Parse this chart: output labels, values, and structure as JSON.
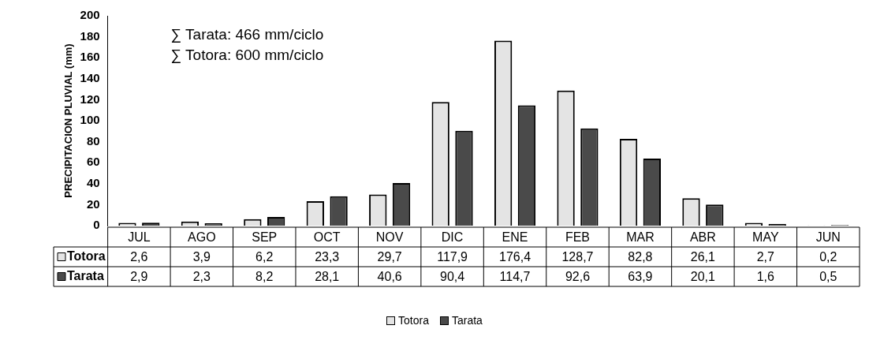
{
  "chart_data": {
    "type": "bar",
    "ylabel": "PRECIPITACION PLUVIAL (mm)",
    "annotations": [
      "∑ Tarata: 466 mm/ciclo",
      "∑ Totora: 600 mm/ciclo"
    ],
    "categories": [
      "JUL",
      "AGO",
      "SEP",
      "OCT",
      "NOV",
      "DIC",
      "ENE",
      "FEB",
      "MAR",
      "ABR",
      "MAY",
      "JUN"
    ],
    "series": [
      {
        "name": "Totora",
        "color": "#e4e4e4",
        "values": [
          2.6,
          3.9,
          6.2,
          23.3,
          29.7,
          117.9,
          176.4,
          128.7,
          82.8,
          26.1,
          2.7,
          0.2
        ],
        "value_labels": [
          "2,6",
          "3,9",
          "6,2",
          "23,3",
          "29,7",
          "117,9",
          "176,4",
          "128,7",
          "82,8",
          "26,1",
          "2,7",
          "0,2"
        ]
      },
      {
        "name": "Tarata",
        "color": "#4a4a4a",
        "values": [
          2.9,
          2.3,
          8.2,
          28.1,
          40.6,
          90.4,
          114.7,
          92.6,
          63.9,
          20.1,
          1.6,
          0.5
        ],
        "value_labels": [
          "2,9",
          "2,3",
          "8,2",
          "28,1",
          "40,6",
          "90,4",
          "114,7",
          "92,6",
          "63,9",
          "20,1",
          "1,6",
          "0,5"
        ]
      }
    ],
    "ylim": [
      0,
      200
    ],
    "yticks": [
      0,
      20,
      40,
      60,
      80,
      100,
      120,
      140,
      160,
      180,
      200
    ],
    "grid": false,
    "legend": "bottom"
  }
}
